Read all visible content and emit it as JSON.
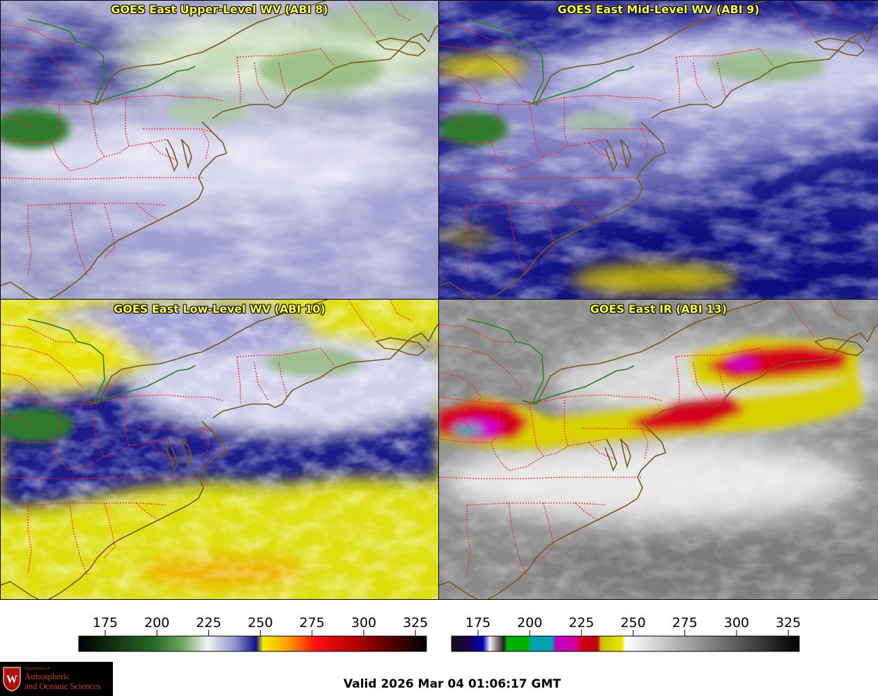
{
  "panels": [
    {
      "id": "p1",
      "title": "GOES East Upper-Level WV (ABI 8)"
    },
    {
      "id": "p2",
      "title": "GOES East Mid-Level WV (ABI 9)"
    },
    {
      "id": "p3",
      "title": "GOES East Low-Level WV (ABI 10)"
    },
    {
      "id": "p4",
      "title": "GOES East IR (ABI 13)"
    }
  ],
  "colorbar_wv": {
    "ticks": [
      "175",
      "200",
      "225",
      "250",
      "275",
      "300",
      "325"
    ]
  },
  "colorbar_ir": {
    "ticks": [
      "175",
      "200",
      "225",
      "250",
      "275",
      "300",
      "325"
    ]
  },
  "logo": {
    "line1": "Department of",
    "line2": "Atmospheric",
    "line3": "and Oceanic Sciences"
  },
  "valid_time": "Valid 2026 Mar 04 01:06:17 GMT",
  "colors": {
    "title_text": "#ffff33",
    "state_borders": "#ff2020",
    "coastline": "#7a5a10",
    "canada_border": "#1a8a1a"
  }
}
